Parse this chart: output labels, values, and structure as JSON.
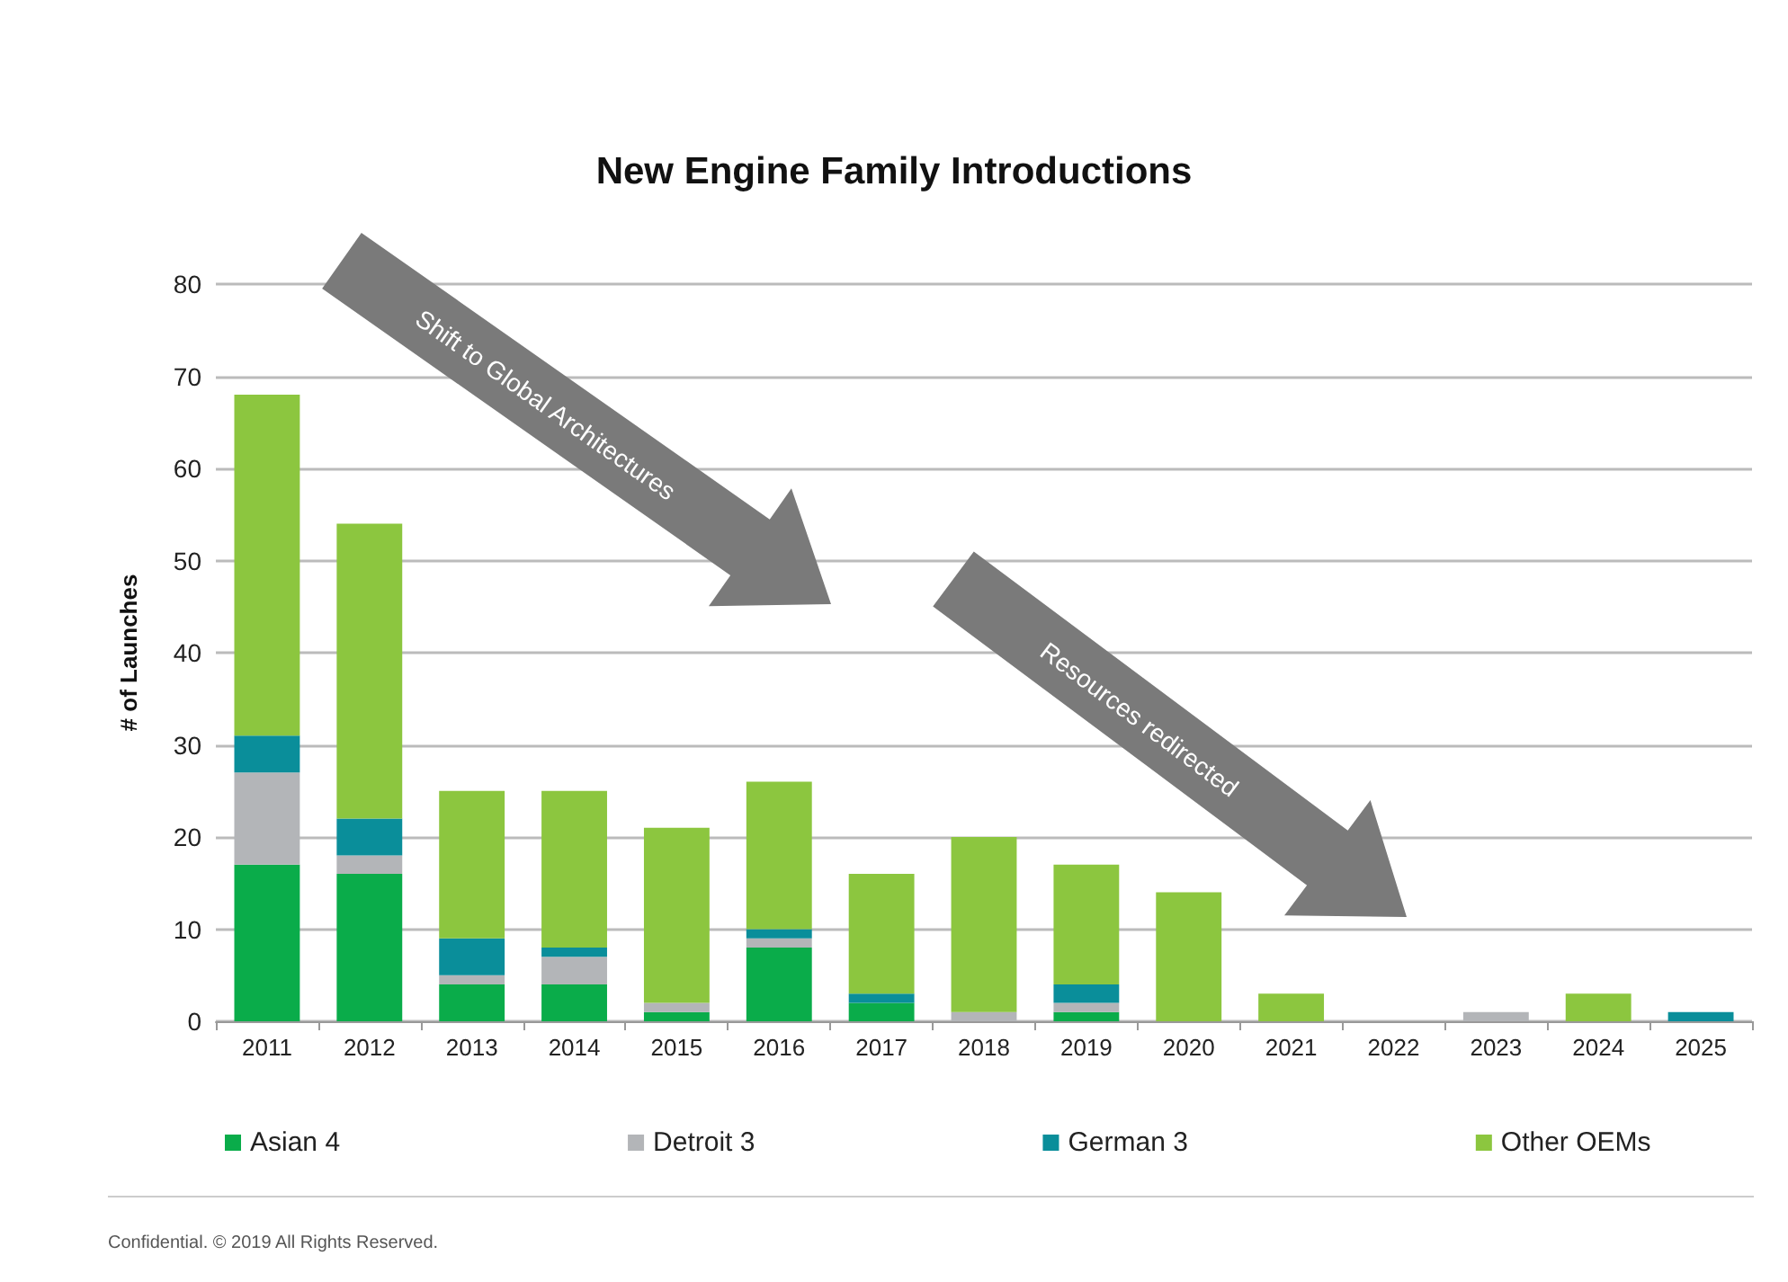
{
  "chart_data": {
    "type": "bar",
    "title": "New Engine Family Introductions",
    "ylabel": "# of Launches",
    "stacked": true,
    "categories": [
      "2011",
      "2012",
      "2013",
      "2014",
      "2015",
      "2016",
      "2017",
      "2018",
      "2019",
      "2020",
      "2021",
      "2022",
      "2023",
      "2024",
      "2025"
    ],
    "series": [
      {
        "name": "Asian 4",
        "color": "#0aac4a",
        "values": [
          17,
          16,
          4,
          4,
          1,
          8,
          2,
          0,
          1,
          0,
          0,
          0,
          0,
          0,
          0
        ]
      },
      {
        "name": "Detroit 3",
        "color": "#b3b5b8",
        "values": [
          10,
          2,
          1,
          3,
          1,
          1,
          0,
          1,
          1,
          0,
          0,
          0,
          1,
          0,
          0
        ]
      },
      {
        "name": "German 3",
        "color": "#0a8e9a",
        "values": [
          4,
          4,
          4,
          1,
          0,
          1,
          1,
          0,
          2,
          0,
          0,
          0,
          0,
          0,
          1
        ]
      },
      {
        "name": "Other OEMs",
        "color": "#8cc63f",
        "values": [
          37,
          32,
          16,
          17,
          19,
          16,
          13,
          19,
          13,
          14,
          3,
          0,
          0,
          3,
          0
        ]
      }
    ],
    "ylim": [
      0,
      80
    ],
    "yticks": [
      0,
      10,
      20,
      30,
      40,
      50,
      60,
      70,
      80
    ],
    "grid": "y",
    "legend": "bottom",
    "annotations": [
      "Shift to Global Architectures",
      "Resources redirected",
      "Confidential. © 2019 All Rights Reserved."
    ]
  }
}
